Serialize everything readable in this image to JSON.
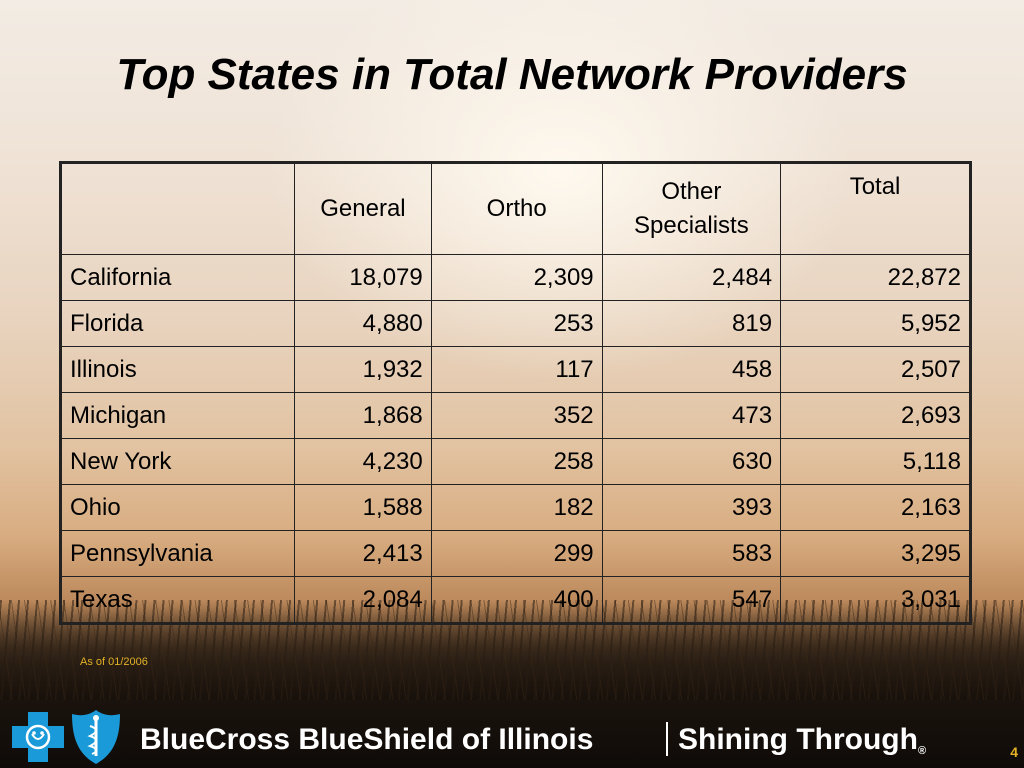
{
  "slide": {
    "title": "Top States in Total Network Providers",
    "note": "As of 01/2006",
    "page_number": "4"
  },
  "table": {
    "headers": {
      "state": "",
      "general": "General",
      "ortho": "Ortho",
      "other_line1": "Other",
      "other_line2": "Specialists",
      "total": "Total"
    },
    "rows": [
      {
        "state": "California",
        "general": "18,079",
        "ortho": "2,309",
        "other": "2,484",
        "total": "22,872"
      },
      {
        "state": "Florida",
        "general": "4,880",
        "ortho": "253",
        "other": "819",
        "total": "5,952"
      },
      {
        "state": "Illinois",
        "general": "1,932",
        "ortho": "117",
        "other": "458",
        "total": "2,507"
      },
      {
        "state": "Michigan",
        "general": "1,868",
        "ortho": "352",
        "other": "473",
        "total": "2,693"
      },
      {
        "state": "New York",
        "general": "4,230",
        "ortho": "258",
        "other": "630",
        "total": "5,118"
      },
      {
        "state": "Ohio",
        "general": "1,588",
        "ortho": "182",
        "other": "393",
        "total": "2,163"
      },
      {
        "state": "Pennsylvania",
        "general": "2,413",
        "ortho": "299",
        "other": "583",
        "total": "3,295"
      },
      {
        "state": "Texas",
        "general": "2,084",
        "ortho": "400",
        "other": "547",
        "total": "3,031"
      }
    ]
  },
  "footer": {
    "brand": "BlueCross BlueShield of Illinois",
    "tagline": "Shining Through",
    "registered_mark": "®",
    "logo_cross_icon": "blue-cross-icon",
    "logo_shield_icon": "blue-shield-icon"
  },
  "colors": {
    "accent": "#e2b126",
    "brand_blue": "#1a9ad8",
    "text": "#000000",
    "footer_text": "#ffffff"
  }
}
